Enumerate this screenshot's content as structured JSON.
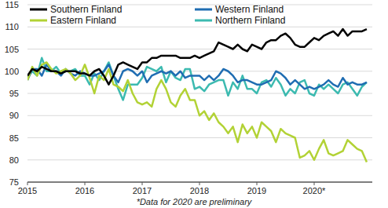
{
  "chart_data": {
    "type": "line",
    "categories": [
      "2015",
      null,
      null,
      null,
      null,
      null,
      null,
      null,
      null,
      null,
      null,
      null,
      "2016",
      null,
      null,
      null,
      null,
      null,
      null,
      null,
      null,
      null,
      null,
      null,
      "2017",
      null,
      null,
      null,
      null,
      null,
      null,
      null,
      null,
      null,
      null,
      null,
      "2018",
      null,
      null,
      null,
      null,
      null,
      null,
      null,
      null,
      null,
      null,
      null,
      "2019",
      null,
      null,
      null,
      null,
      null,
      null,
      null,
      null,
      null,
      null,
      null,
      "2020*",
      null,
      null,
      null,
      null,
      null,
      null,
      null,
      null,
      null,
      null,
      null
    ],
    "series": [
      {
        "name": "Southern Finland",
        "color": "#000000",
        "values": [
          99,
          100.5,
          100,
          101,
          100.5,
          100,
          100,
          99.5,
          100,
          100,
          100,
          99.5,
          99.5,
          99,
          100,
          100.5,
          99,
          97,
          99,
          101.5,
          102,
          101.5,
          101,
          100.5,
          102,
          102,
          103,
          103,
          103.5,
          103.5,
          103.5,
          103.5,
          103,
          103,
          103,
          103.5,
          103,
          103.5,
          104,
          104.5,
          106.5,
          106,
          105.5,
          105,
          106,
          105,
          104.5,
          106,
          105.5,
          105,
          106.5,
          107,
          107,
          108,
          108.5,
          107.5,
          106,
          105.5,
          105.5,
          106.5,
          107.5,
          107,
          108,
          108.5,
          109,
          108,
          109.5,
          108,
          109,
          109,
          109,
          109.5
        ]
      },
      {
        "name": "Western Finland",
        "color": "#1f6db2",
        "values": [
          98,
          100.5,
          100.5,
          99,
          101.5,
          100,
          100,
          99,
          100.5,
          99.5,
          99,
          100,
          99.5,
          99,
          99,
          99.5,
          100,
          101.5,
          99,
          97.5,
          100,
          100.5,
          100,
          99,
          100,
          97.5,
          99,
          99.5,
          100,
          99.5,
          100,
          99,
          100,
          98.5,
          99,
          99,
          99,
          98,
          99,
          98,
          99,
          100.5,
          100,
          99,
          97.5,
          98,
          98,
          97.5,
          97,
          97,
          97.5,
          98,
          100,
          99.5,
          98.5,
          97,
          98,
          97,
          96,
          96.5,
          96,
          96.5,
          97,
          98,
          97,
          96.5,
          98.5,
          97,
          97.5,
          97,
          97,
          97.5
        ]
      },
      {
        "name": "Eastern Finland",
        "color": "#b2d235",
        "values": [
          98,
          101,
          99,
          101.5,
          102,
          100.5,
          99.5,
          100,
          100.5,
          99.5,
          98,
          99,
          101.5,
          98.5,
          95,
          99,
          98,
          100.5,
          97,
          96.5,
          95.5,
          98,
          95,
          93,
          92.5,
          93,
          92,
          96,
          98,
          96,
          93,
          92,
          94.5,
          96,
          93.5,
          93.5,
          90,
          91,
          89,
          90.5,
          88.5,
          87.5,
          86,
          87.5,
          84,
          88,
          86,
          87.5,
          85,
          88.5,
          87.5,
          86.5,
          84,
          87,
          86,
          85.5,
          85,
          80.5,
          81,
          82,
          80,
          82.5,
          84.5,
          81.5,
          81,
          81.5,
          82,
          84.5,
          83.5,
          82.5,
          82,
          79.5
        ]
      },
      {
        "name": "Northern Finland",
        "color": "#3cbab0",
        "values": [
          98.5,
          100,
          99,
          103,
          100,
          100,
          101,
          99.5,
          100,
          100,
          100.5,
          99,
          99,
          97,
          99.5,
          98,
          100,
          102,
          99,
          96,
          93.5,
          97,
          97,
          97,
          98.5,
          101,
          100.5,
          100,
          101,
          97.5,
          100,
          98.5,
          98,
          100.5,
          100.5,
          96,
          96.5,
          95.5,
          97,
          97.5,
          98,
          98,
          94.5,
          97.5,
          96,
          99,
          96,
          96,
          95,
          97.5,
          98,
          96.5,
          98.5,
          97,
          94.5,
          96,
          95,
          97.5,
          98,
          95,
          94.5,
          97,
          96,
          97,
          96,
          95,
          97,
          97.5,
          96,
          94.5,
          96.5,
          97.5
        ]
      }
    ],
    "ylim": [
      75,
      115
    ],
    "yticks": [
      75,
      80,
      85,
      90,
      95,
      100,
      105,
      110,
      115
    ],
    "grid": true,
    "legend": "upper left",
    "annotations": [
      "*Data for 2020 are preliminary"
    ]
  }
}
